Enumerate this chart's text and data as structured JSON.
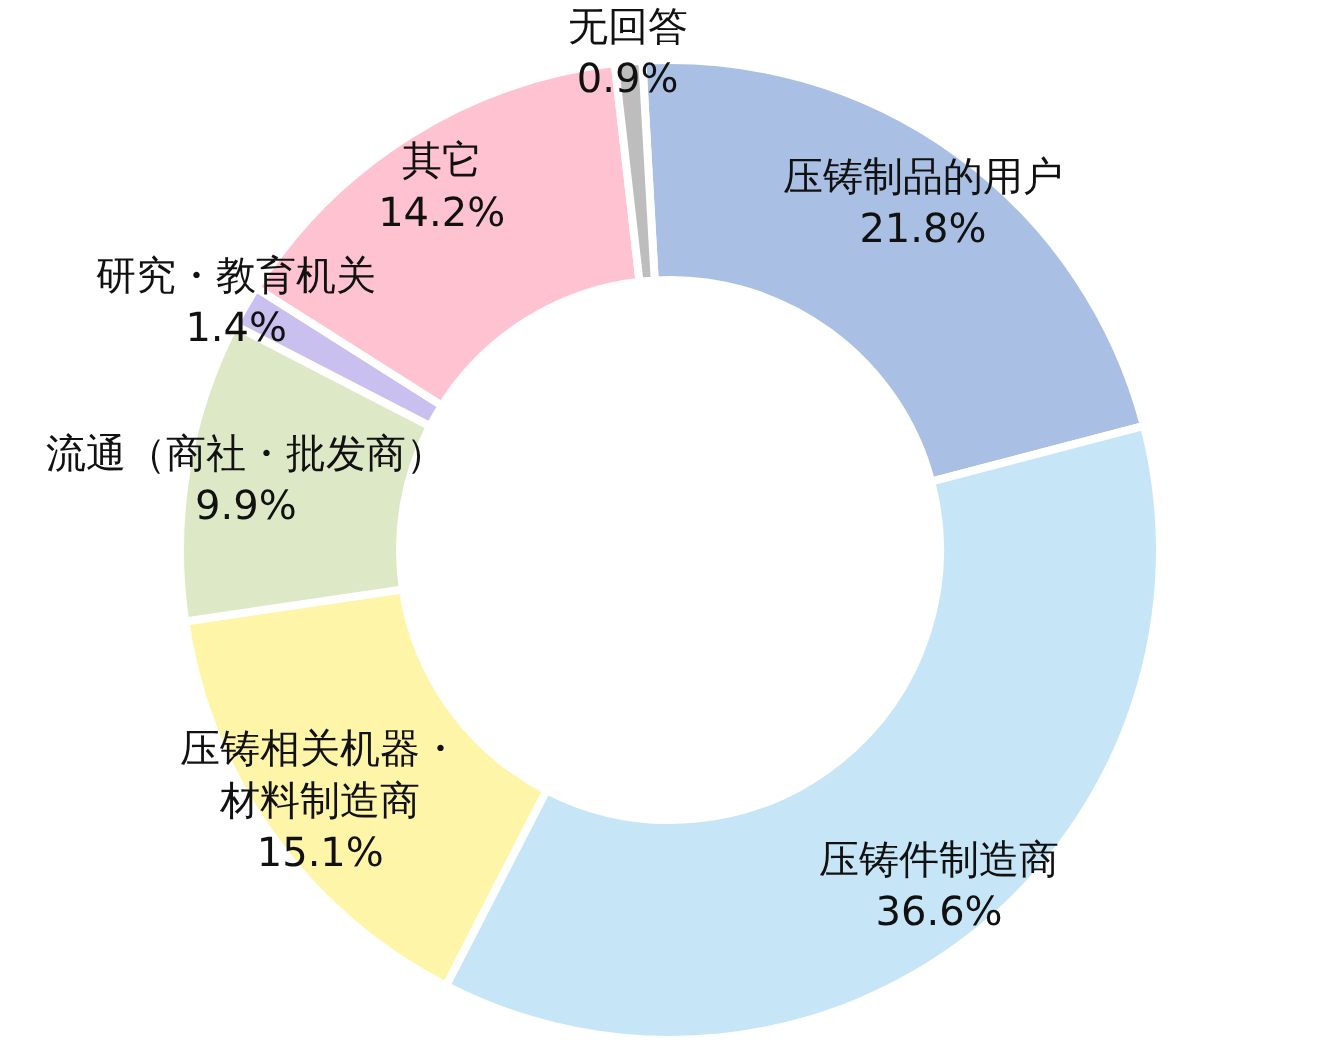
{
  "chart_data": {
    "type": "donut",
    "categories": [
      "压铸制品的用户",
      "压铸件制造商",
      "压铸相关机器・材料制造商",
      "流通（商社・批发商）",
      "研究・教育机关",
      "其它",
      "无回答"
    ],
    "values": [
      21.8,
      36.6,
      15.1,
      9.9,
      1.4,
      14.2,
      0.9
    ],
    "colors": [
      "#a9bfe3",
      "#c6e6f7",
      "#fff5a8",
      "#dde9c6",
      "#c9c0f0",
      "#ffc2d0",
      "#bdbdbd"
    ],
    "value_labels": [
      "21.8%",
      "36.6%",
      "15.1%",
      "9.9%",
      "1.4%",
      "14.2%",
      "0.9%"
    ]
  }
}
